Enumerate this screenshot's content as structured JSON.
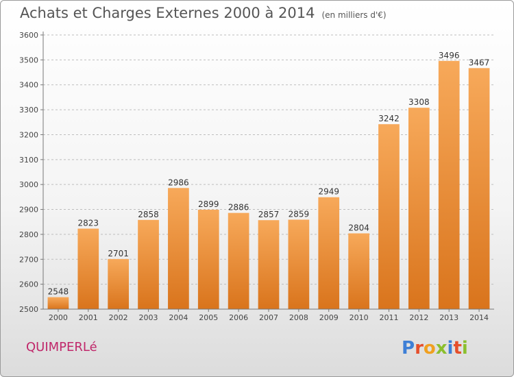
{
  "header": {
    "title": "Achats et Charges Externes 2000 à 2014",
    "unit": "(en milliers d'€)"
  },
  "footer": {
    "town": "QUIMPERLé",
    "brand": "Proxiti"
  },
  "colors": {
    "bar_top": "#f7a95a",
    "bar_bottom": "#d9741c",
    "town": "#c0276a"
  },
  "chart_data": {
    "type": "bar",
    "categories": [
      "2000",
      "2001",
      "2002",
      "2003",
      "2004",
      "2005",
      "2006",
      "2007",
      "2008",
      "2009",
      "2010",
      "2011",
      "2012",
      "2013",
      "2014"
    ],
    "values": [
      2548,
      2823,
      2701,
      2858,
      2986,
      2899,
      2886,
      2857,
      2859,
      2949,
      2804,
      3242,
      3308,
      3496,
      3467
    ],
    "ylim": [
      2500,
      3600
    ],
    "yticks": [
      2500,
      2600,
      2700,
      2800,
      2900,
      3000,
      3100,
      3200,
      3300,
      3400,
      3500,
      3600
    ],
    "grid": true,
    "data_labels": true
  }
}
